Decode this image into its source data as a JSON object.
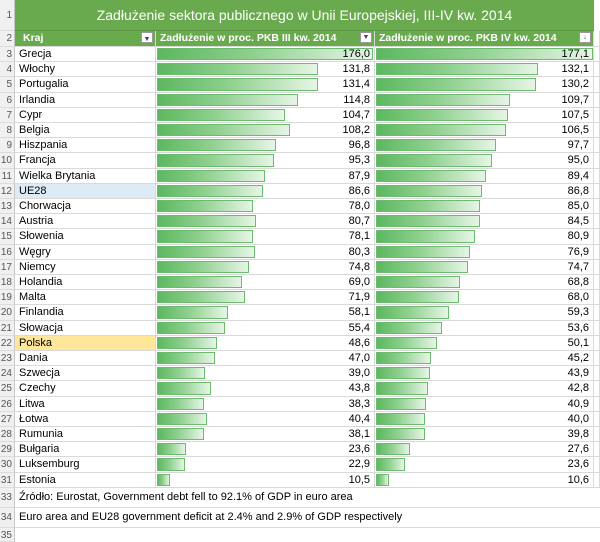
{
  "title": "Zadłużenie sektora publicznego w Unii Europejskiej, III-IV kw. 2014",
  "headers": {
    "country": "Kraj",
    "col_q3": "Zadłużenie w proc. PKB III kw. 2014",
    "col_q4": "Zadłużenie w proc. PKB IV kw. 2014"
  },
  "icons": {
    "filter": "filter-dropdown-icon",
    "sort": "sort-descending-icon"
  },
  "colors": {
    "header_bg": "#6aaa4e",
    "bar": "#5cb85f",
    "ue_highlight": "#ddebf7",
    "pl_highlight": "#ffe699"
  },
  "bar_max": 177.1,
  "rows": [
    {
      "country": "Grecja",
      "q3": "176,0",
      "q4": "177,1",
      "v3": 176.0,
      "v4": 177.1
    },
    {
      "country": "Włochy",
      "q3": "131,8",
      "q4": "132,1",
      "v3": 131.8,
      "v4": 132.1
    },
    {
      "country": "Portugalia",
      "q3": "131,4",
      "q4": "130,2",
      "v3": 131.4,
      "v4": 130.2
    },
    {
      "country": "Irlandia",
      "q3": "114,8",
      "q4": "109,7",
      "v3": 114.8,
      "v4": 109.7
    },
    {
      "country": "Cypr",
      "q3": "104,7",
      "q4": "107,5",
      "v3": 104.7,
      "v4": 107.5
    },
    {
      "country": "Belgia",
      "q3": "108,2",
      "q4": "106,5",
      "v3": 108.2,
      "v4": 106.5
    },
    {
      "country": "Hiszpania",
      "q3": "96,8",
      "q4": "97,7",
      "v3": 96.8,
      "v4": 97.7
    },
    {
      "country": "Francja",
      "q3": "95,3",
      "q4": "95,0",
      "v3": 95.3,
      "v4": 95.0
    },
    {
      "country": "Wielka Brytania",
      "q3": "87,9",
      "q4": "89,4",
      "v3": 87.9,
      "v4": 89.4
    },
    {
      "country": "UE28",
      "q3": "86,6",
      "q4": "86,8",
      "v3": 86.6,
      "v4": 86.8,
      "highlight": "ue"
    },
    {
      "country": "Chorwacja",
      "q3": "78,0",
      "q4": "85,0",
      "v3": 78.0,
      "v4": 85.0
    },
    {
      "country": "Austria",
      "q3": "80,7",
      "q4": "84,5",
      "v3": 80.7,
      "v4": 84.5
    },
    {
      "country": "Słowenia",
      "q3": "78,1",
      "q4": "80,9",
      "v3": 78.1,
      "v4": 80.9
    },
    {
      "country": "Węgry",
      "q3": "80,3",
      "q4": "76,9",
      "v3": 80.3,
      "v4": 76.9
    },
    {
      "country": "Niemcy",
      "q3": "74,8",
      "q4": "74,7",
      "v3": 74.8,
      "v4": 74.7
    },
    {
      "country": "Holandia",
      "q3": "69,0",
      "q4": "68,8",
      "v3": 69.0,
      "v4": 68.8
    },
    {
      "country": "Malta",
      "q3": "71,9",
      "q4": "68,0",
      "v3": 71.9,
      "v4": 68.0
    },
    {
      "country": "Finlandia",
      "q3": "58,1",
      "q4": "59,3",
      "v3": 58.1,
      "v4": 59.3
    },
    {
      "country": "Słowacja",
      "q3": "55,4",
      "q4": "53,6",
      "v3": 55.4,
      "v4": 53.6
    },
    {
      "country": "Polska",
      "q3": "48,6",
      "q4": "50,1",
      "v3": 48.6,
      "v4": 50.1,
      "highlight": "pl"
    },
    {
      "country": "Dania",
      "q3": "47,0",
      "q4": "45,2",
      "v3": 47.0,
      "v4": 45.2
    },
    {
      "country": "Szwecja",
      "q3": "39,0",
      "q4": "43,9",
      "v3": 39.0,
      "v4": 43.9
    },
    {
      "country": "Czechy",
      "q3": "43,8",
      "q4": "42,8",
      "v3": 43.8,
      "v4": 42.8
    },
    {
      "country": "Litwa",
      "q3": "38,3",
      "q4": "40,9",
      "v3": 38.3,
      "v4": 40.9
    },
    {
      "country": "Łotwa",
      "q3": "40,4",
      "q4": "40,0",
      "v3": 40.4,
      "v4": 40.0
    },
    {
      "country": "Rumunia",
      "q3": "38,1",
      "q4": "39,8",
      "v3": 38.1,
      "v4": 39.8
    },
    {
      "country": "Bułgaria",
      "q3": "23,6",
      "q4": "27,6",
      "v3": 23.6,
      "v4": 27.6
    },
    {
      "country": "Luksemburg",
      "q3": "22,9",
      "q4": "23,6",
      "v3": 22.9,
      "v4": 23.6
    },
    {
      "country": "Estonia",
      "q3": "10,5",
      "q4": "10,6",
      "v3": 10.5,
      "v4": 10.6
    }
  ],
  "notes": [
    "Źródło: Eurostat, Government debt fell to 92.1% of GDP in euro area",
    "Euro area and EU28 government deficit at 2.4% and 2.9% of GDP respectively"
  ],
  "row_numbers": [
    "1",
    "2",
    "3",
    "4",
    "5",
    "6",
    "7",
    "8",
    "9",
    "10",
    "11",
    "12",
    "13",
    "14",
    "15",
    "16",
    "17",
    "18",
    "19",
    "20",
    "21",
    "22",
    "23",
    "24",
    "25",
    "26",
    "27",
    "28",
    "29",
    "30",
    "31",
    "32",
    "33",
    "34",
    "35"
  ]
}
